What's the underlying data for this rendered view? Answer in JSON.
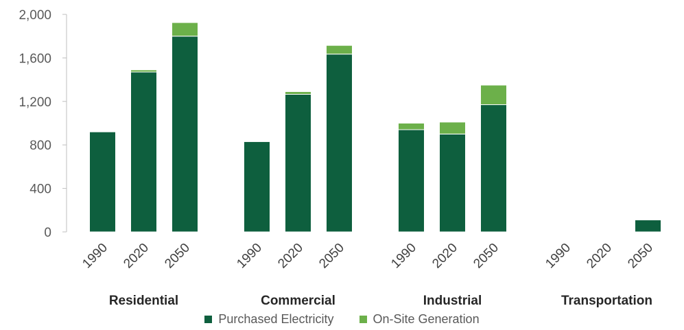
{
  "chart_data": {
    "type": "bar",
    "stacked": true,
    "groups": [
      {
        "name": "Residential",
        "categories": [
          "1990",
          "2020",
          "2050"
        ]
      },
      {
        "name": "Commercial",
        "categories": [
          "1990",
          "2020",
          "2050"
        ]
      },
      {
        "name": "Industrial",
        "categories": [
          "1990",
          "2020",
          "2050"
        ]
      },
      {
        "name": "Transportation",
        "categories": [
          "1990",
          "2020",
          "2050"
        ]
      }
    ],
    "series": [
      {
        "name": "Purchased Electricity",
        "color": "#0e5f3e",
        "values": [
          920,
          1470,
          1800,
          830,
          1265,
          1635,
          940,
          900,
          1170,
          0,
          0,
          110
        ]
      },
      {
        "name": "On-Site Generation",
        "color": "#6cb04a",
        "values": [
          0,
          20,
          125,
          0,
          25,
          80,
          60,
          110,
          180,
          0,
          0,
          0
        ]
      }
    ],
    "ylim": [
      0,
      2000
    ],
    "yticks": [
      0,
      400,
      800,
      1200,
      1600,
      2000
    ],
    "ytick_labels": [
      "0",
      "400",
      "800",
      "1,200",
      "1,600",
      "2,000"
    ],
    "grid": false,
    "legend_position": "bottom",
    "title": "",
    "xlabel": "",
    "ylabel": ""
  }
}
